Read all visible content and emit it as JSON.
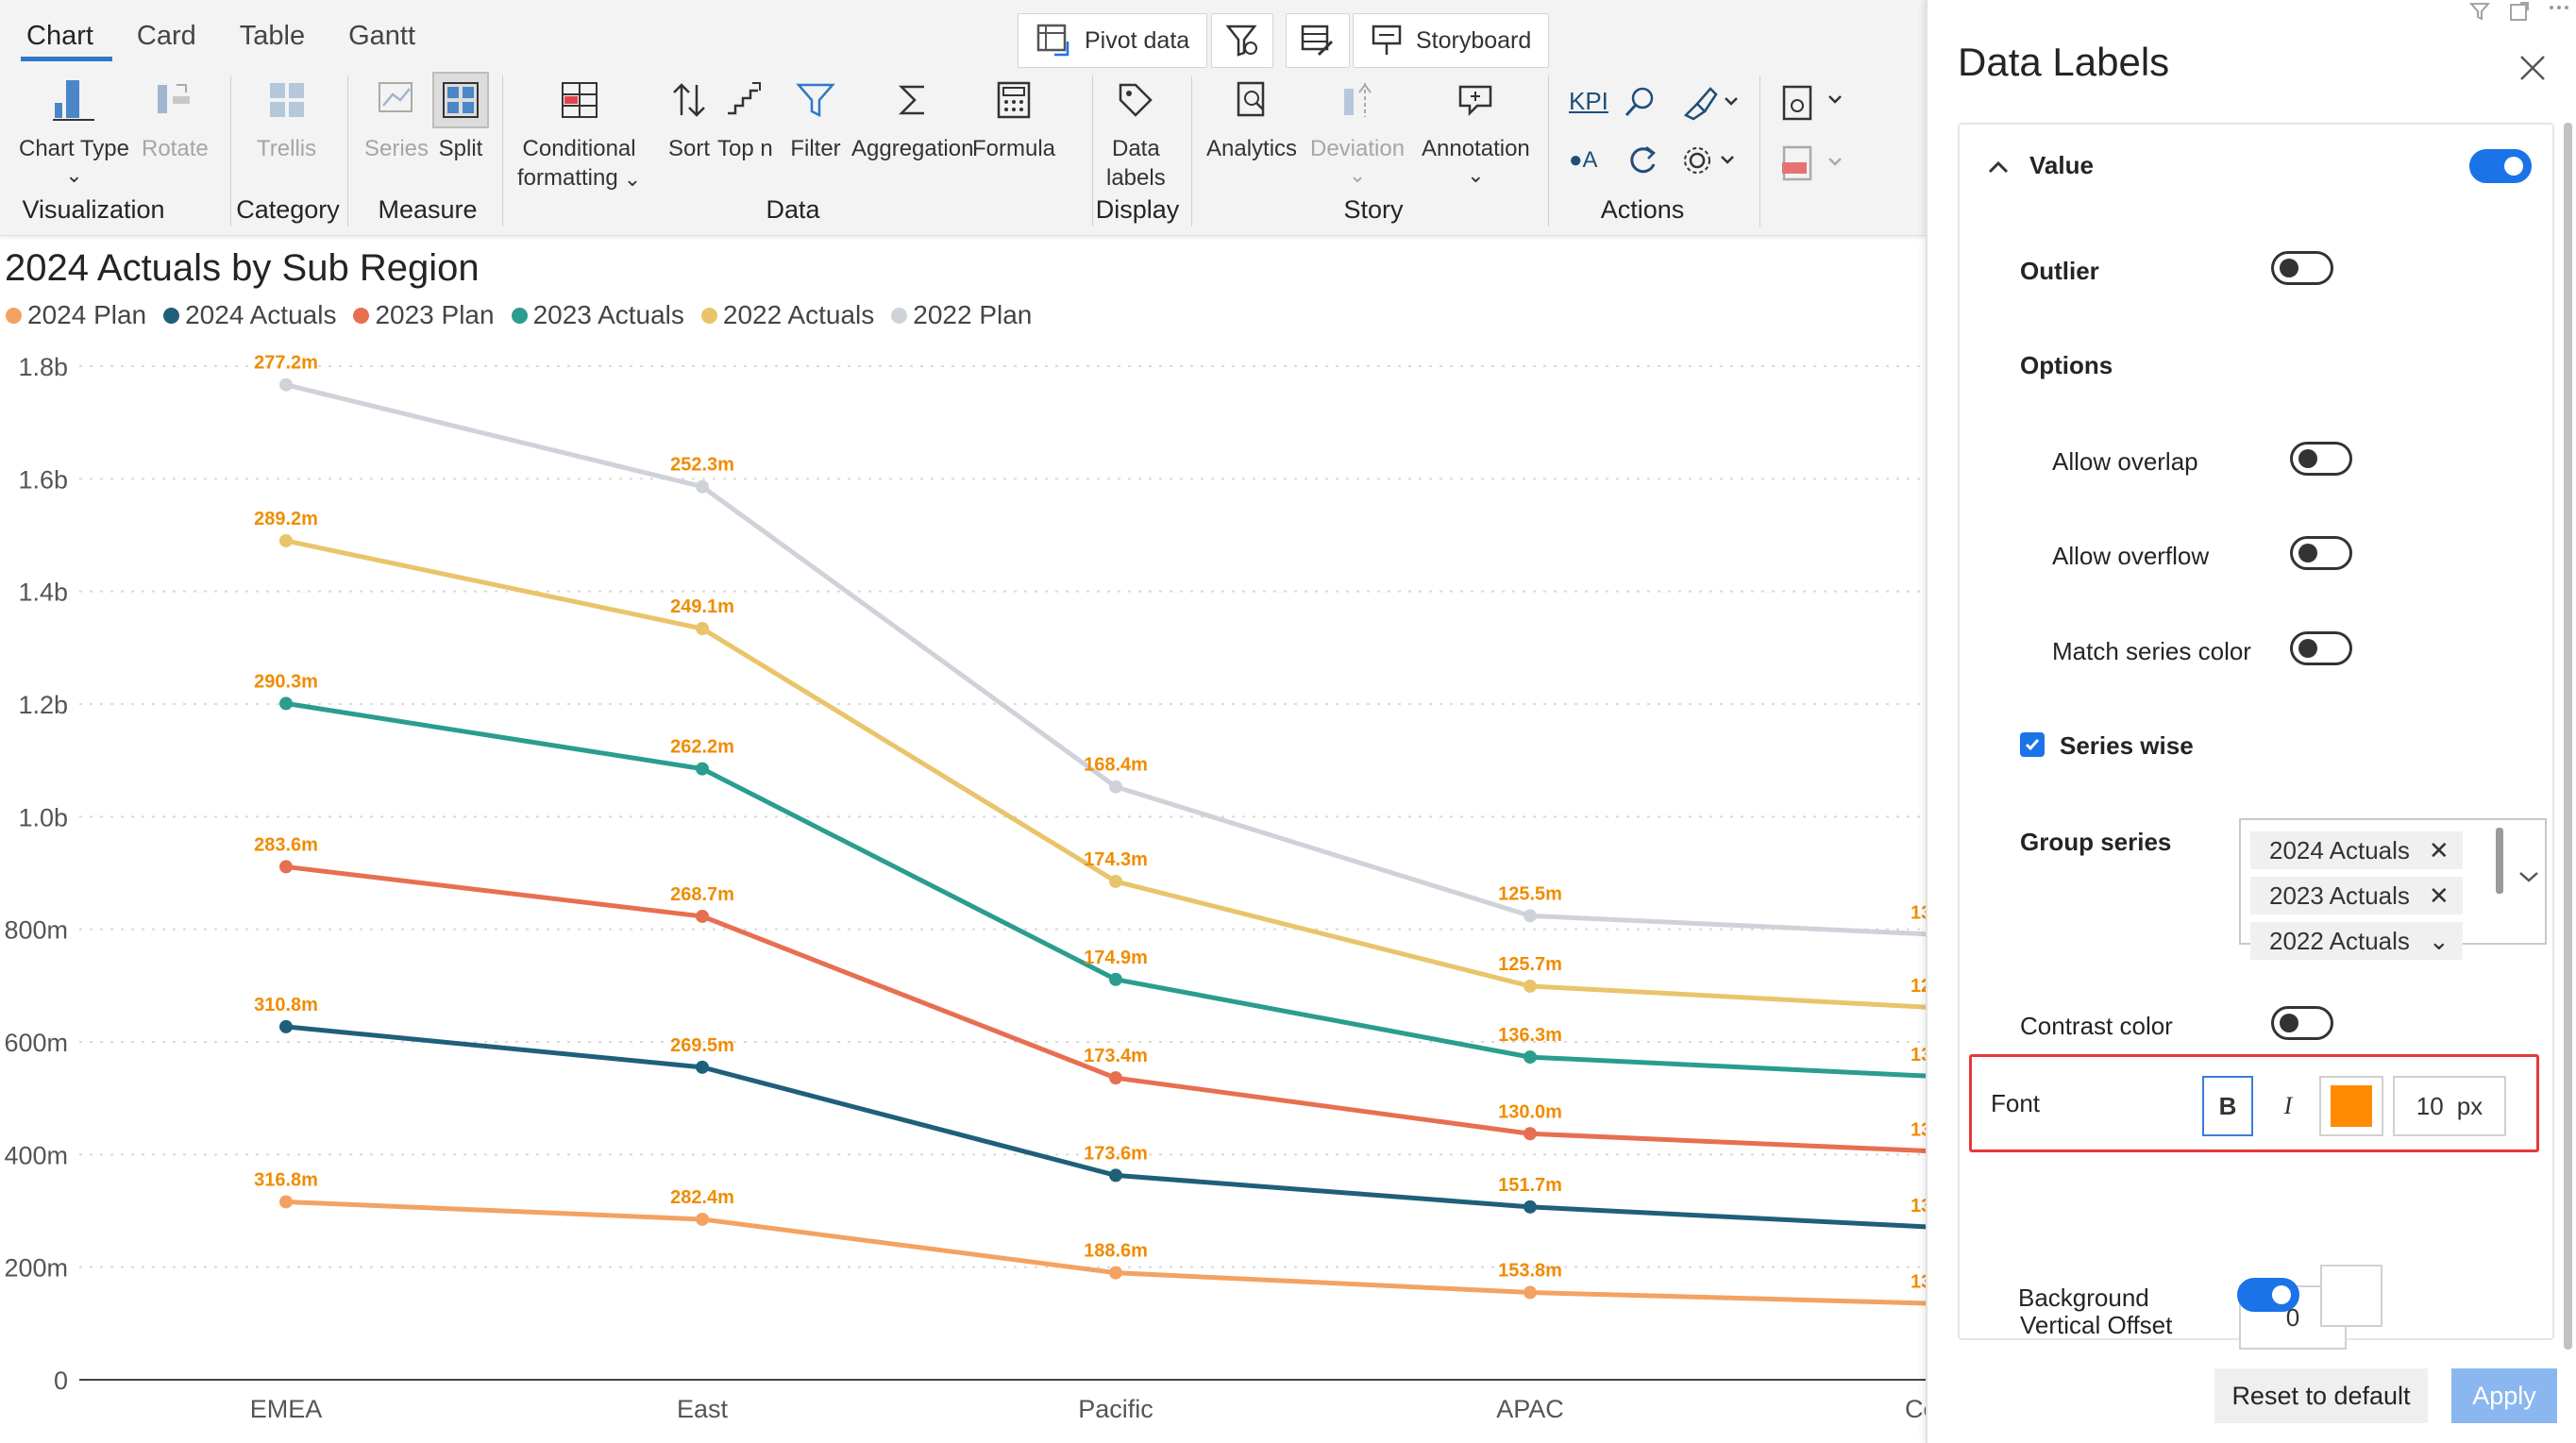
{
  "ribbon": {
    "tabs": [
      {
        "label": "Chart",
        "active": true
      },
      {
        "label": "Card",
        "active": false
      },
      {
        "label": "Table",
        "active": false
      },
      {
        "label": "Gantt",
        "active": false
      }
    ],
    "top_buttons": {
      "pivot": "Pivot data",
      "storyboard": "Storyboard"
    },
    "buttons": {
      "chart_type": "Chart Type",
      "rotate": "Rotate",
      "trellis": "Trellis",
      "series": "Series",
      "split": "Split",
      "conditional_formatting_1": "Conditional",
      "conditional_formatting_2": "formatting",
      "sort": "Sort",
      "top_n": "Top n",
      "filter": "Filter",
      "aggregation": "Aggregation",
      "formula": "Formula",
      "data_labels_1": "Data",
      "data_labels_2": "labels",
      "analytics": "Analytics",
      "deviation": "Deviation",
      "annotation": "Annotation",
      "kpi": "KPI"
    },
    "groups": {
      "visualization": "Visualization",
      "category": "Category",
      "measure": "Measure",
      "data": "Data",
      "display": "Display",
      "story": "Story",
      "actions": "Actions"
    }
  },
  "chart_data": {
    "type": "line",
    "title": "2024 Actuals by Sub Region",
    "categories": [
      "EMEA",
      "East",
      "Pacific",
      "APAC",
      "Ce"
    ],
    "y_ticks": [
      "0",
      "200m",
      "400m",
      "600m",
      "800m",
      "1.0b",
      "1.2b",
      "1.4b",
      "1.6b",
      "1.8b"
    ],
    "ylim": [
      0,
      1.8
    ],
    "grid": true,
    "legend_position": "top-left",
    "series": [
      {
        "name": "2024 Plan",
        "color": "#f4a261",
        "cum": [
          0.316,
          0.285,
          0.19,
          0.155,
          0.135
        ],
        "labels": [
          "316.8m",
          "282.4m",
          "188.6m",
          "153.8m",
          "13"
        ]
      },
      {
        "name": "2024 Actuals",
        "color": "#1f5f7a",
        "cum": [
          0.627,
          0.555,
          0.363,
          0.307,
          0.27
        ],
        "labels": [
          "310.8m",
          "269.5m",
          "173.6m",
          "151.7m",
          "13"
        ]
      },
      {
        "name": "2023 Plan",
        "color": "#e76f51",
        "cum": [
          0.911,
          0.823,
          0.536,
          0.437,
          0.405
        ],
        "labels": [
          "283.6m",
          "268.7m",
          "173.4m",
          "130.0m",
          "13"
        ]
      },
      {
        "name": "2023 Actuals",
        "color": "#2a9d8f",
        "cum": [
          1.201,
          1.085,
          0.711,
          0.573,
          0.538
        ],
        "labels": [
          "290.3m",
          "262.2m",
          "174.9m",
          "136.3m",
          "13"
        ]
      },
      {
        "name": "2022 Actuals",
        "color": "#e9c46a",
        "cum": [
          1.49,
          1.334,
          0.885,
          0.699,
          0.66
        ],
        "labels": [
          "289.2m",
          "249.1m",
          "174.3m",
          "125.7m",
          "12"
        ]
      },
      {
        "name": "2022 Plan",
        "color": "#cfd2d8",
        "cum": [
          1.767,
          1.586,
          1.053,
          0.824,
          0.79
        ],
        "labels": [
          "277.2m",
          "252.3m",
          "168.4m",
          "125.5m",
          "13"
        ]
      }
    ],
    "label_color": "#f08c00"
  },
  "panel": {
    "title": "Data Labels",
    "value_section": "Value",
    "outlier": "Outlier",
    "options": "Options",
    "allow_overlap": "Allow overlap",
    "allow_overflow": "Allow overflow",
    "match_series_color": "Match series color",
    "series_wise": "Series wise",
    "group_series": "Group series",
    "chips": [
      "2024 Actuals",
      "2023 Actuals",
      "2022 Actuals"
    ],
    "contrast_color": "Contrast color",
    "font": "Font",
    "font_bold": "B",
    "font_italic": "I",
    "font_color": "#ff8c00",
    "font_size": "10",
    "font_unit": "px",
    "vertical_offset": "Vertical Offset",
    "vertical_offset_value": "0",
    "background": "Background",
    "reset": "Reset to default",
    "apply": "Apply",
    "toggles": {
      "value": true,
      "outlier": false,
      "allow_overlap": false,
      "allow_overflow": false,
      "match_series_color": false,
      "contrast_color": false,
      "background": true
    },
    "series_wise_checked": true
  }
}
